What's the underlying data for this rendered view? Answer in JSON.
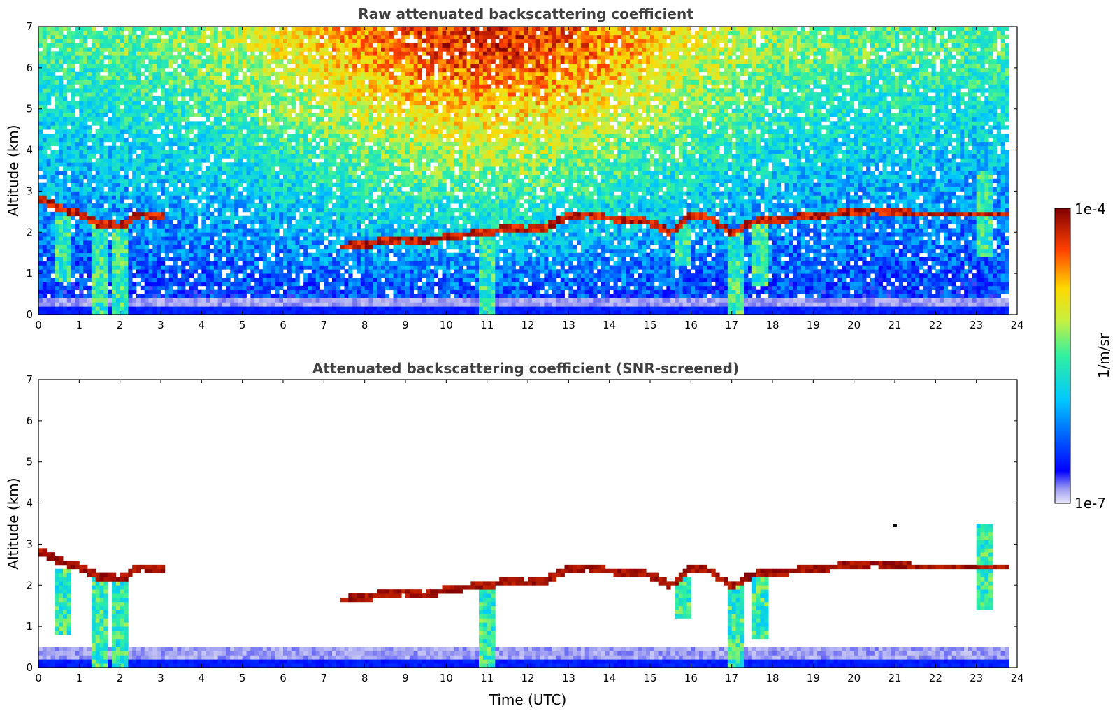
{
  "chart_data": [
    {
      "type": "heatmap",
      "title": "Raw attenuated backscattering coefficient",
      "xlabel": "",
      "ylabel": "Altitude (km)",
      "xlim": [
        0,
        24
      ],
      "ylim": [
        0,
        7
      ],
      "xticks": [
        "0",
        "1",
        "2",
        "3",
        "4",
        "5",
        "6",
        "7",
        "8",
        "9",
        "10",
        "11",
        "12",
        "13",
        "14",
        "15",
        "16",
        "17",
        "18",
        "19",
        "20",
        "21",
        "22",
        "23",
        "24"
      ],
      "yticks": [
        "0",
        "1",
        "2",
        "3",
        "4",
        "5",
        "6",
        "7"
      ],
      "cloud_layer_altitude_km": {
        "x": [
          0,
          0.5,
          1.0,
          1.5,
          2.0,
          2.5,
          3.0,
          7.5,
          8.0,
          8.5,
          9.0,
          9.5,
          10.0,
          10.5,
          11.0,
          11.5,
          12.0,
          12.5,
          13.0,
          13.5,
          14.0,
          14.5,
          15.0,
          15.5,
          16.0,
          16.5,
          17.0,
          17.5,
          18.0,
          18.5,
          19.0,
          19.5,
          20.0,
          20.5,
          21.0,
          21.5,
          22.0,
          22.5,
          23.0
        ],
        "y": [
          2.85,
          2.6,
          2.45,
          2.2,
          2.15,
          2.45,
          2.4,
          1.65,
          1.7,
          1.8,
          1.85,
          1.75,
          1.9,
          1.95,
          2.0,
          2.1,
          2.05,
          2.15,
          2.4,
          2.45,
          2.35,
          2.3,
          2.25,
          2.0,
          2.4,
          2.35,
          1.95,
          2.25,
          2.3,
          2.35,
          2.4,
          2.45,
          2.5,
          2.55,
          2.5,
          2.45,
          2.45,
          2.45,
          2.45
        ]
      },
      "noise_gradient_peak_x": 11.0,
      "fall_streaks": [
        {
          "x": 0.6,
          "top_km": 2.4,
          "bottom_km": 0.8
        },
        {
          "x": 1.5,
          "top_km": 2.3,
          "bottom_km": 0.0
        },
        {
          "x": 2.0,
          "top_km": 2.1,
          "bottom_km": 0.0
        },
        {
          "x": 11.0,
          "top_km": 1.9,
          "bottom_km": 0.0
        },
        {
          "x": 15.8,
          "top_km": 2.2,
          "bottom_km": 1.2
        },
        {
          "x": 17.1,
          "top_km": 2.0,
          "bottom_km": 0.0
        },
        {
          "x": 17.7,
          "top_km": 2.3,
          "bottom_km": 0.7
        },
        {
          "x": 23.2,
          "top_km": 3.5,
          "bottom_km": 1.4
        }
      ],
      "boundary_layer_top_km": 0.45,
      "data_end_x": 23.8
    },
    {
      "type": "heatmap",
      "title": "Attenuated backscattering coefficient (SNR-screened)",
      "xlabel": "Time (UTC)",
      "ylabel": "Altitude (km)",
      "xlim": [
        0,
        24
      ],
      "ylim": [
        0,
        7
      ],
      "xticks": [
        "0",
        "1",
        "2",
        "3",
        "4",
        "5",
        "6",
        "7",
        "8",
        "9",
        "10",
        "11",
        "12",
        "13",
        "14",
        "15",
        "16",
        "17",
        "18",
        "19",
        "20",
        "21",
        "22",
        "23",
        "24"
      ],
      "yticks": [
        "0",
        "1",
        "2",
        "3",
        "4",
        "5",
        "6",
        "7"
      ],
      "isolated_echo": {
        "x": 21.0,
        "y": 3.45
      },
      "boundary_layer_top_km": 0.5,
      "data_end_x": 23.8
    }
  ],
  "colorbar": {
    "label": "1/m/sr",
    "min_label": "1e-7",
    "max_label": "1e-4",
    "colormap": "jet"
  }
}
